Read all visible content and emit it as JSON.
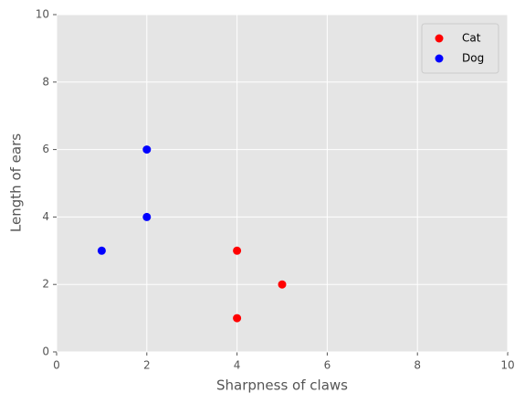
{
  "chart_data": {
    "type": "scatter",
    "x_label": "Sharpness of claws",
    "y_label": "Length of ears",
    "series": [
      {
        "name": "Cat",
        "color": "#ff0000",
        "x": [
          4,
          5,
          4
        ],
        "values": [
          3,
          2,
          1
        ]
      },
      {
        "name": "Dog",
        "color": "#0000ff",
        "x": [
          2,
          2,
          1
        ],
        "values": [
          6,
          4,
          3
        ]
      }
    ],
    "xlim": [
      0,
      10
    ],
    "ylim": [
      0,
      10
    ],
    "xticks": [
      0,
      2,
      4,
      6,
      8,
      10
    ],
    "yticks": [
      0,
      2,
      4,
      6,
      8,
      10
    ],
    "grid": true,
    "legend": "upper right"
  }
}
